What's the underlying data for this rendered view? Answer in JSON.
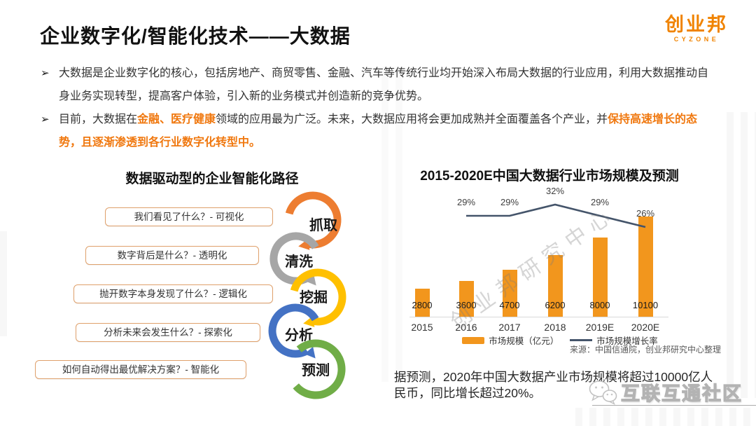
{
  "header": {
    "title": "企业数字化/智能化技术——大数据",
    "logo_text": "创业邦",
    "logo_sub": "CYZONE"
  },
  "bullets": [
    {
      "marker": "➢",
      "segments": [
        {
          "style": "default",
          "text": "大数据是企业数字化的核心，包括房地产、商贸零售、金融、汽车等传统行业均开始深入布局大数据的行业应用，利用大数据推动自身业务实现转型，提高客户体验，引入新的业务模式并创造新的竞争优势。"
        }
      ]
    },
    {
      "marker": "➢",
      "segments": [
        {
          "style": "default",
          "text": "目前，大数据在"
        },
        {
          "style": "accent",
          "text": "金融、医疗健康"
        },
        {
          "style": "default",
          "text": "领域的应用最为广泛。未来，大数据应用将会更加成熟并全面覆盖各个产业，并"
        },
        {
          "style": "accent",
          "text": "保持高速增长的态势，且逐渐渗透到各行业数字化转型中。"
        }
      ]
    }
  ],
  "process": {
    "title": "数据驱动型的企业智能化路径",
    "items": [
      {
        "question": "我们看见了什么？- 可视化",
        "step": "抓取",
        "color": "#ED7D31"
      },
      {
        "question": "数字背后是什么？- 透明化",
        "step": "清洗",
        "color": "#A6A6A6"
      },
      {
        "question": "抛开数字本身发现了什么？- 逻辑化",
        "step": "挖掘",
        "color": "#FFC000"
      },
      {
        "question": "分析未来会发生什么？- 探索化",
        "step": "分析",
        "color": "#4472C4"
      },
      {
        "question": "如何自动得出最优解决方案？- 智能化",
        "step": "预测",
        "color": "#70AD47"
      }
    ]
  },
  "chart_data": {
    "type": "bar",
    "title": "2015-2020E中国大数据行业市场规模及预测",
    "categories": [
      "2015",
      "2016",
      "2017",
      "2018",
      "2019E",
      "2020E"
    ],
    "series": [
      {
        "name": "市场规模（亿元）",
        "type": "bar",
        "color": "#F2961D",
        "values": [
          2800,
          3600,
          4700,
          6200,
          8000,
          10100
        ]
      },
      {
        "name": "市场规模增长率",
        "type": "line",
        "color": "#44546A",
        "values": [
          null,
          29,
          29,
          32,
          29,
          26
        ],
        "unit": "%"
      }
    ],
    "value_labels": true,
    "legend_position": "bottom",
    "grid": false,
    "source": "来源：中国信通院，创业邦研究中心整理"
  },
  "notes": {
    "prediction": "据预测，2020年中国大数据产业市场规模将超过10000亿人民币，同比增长超过20%。"
  },
  "watermarks": {
    "chart_diagonal": "创业邦研究中心",
    "community": "互联互通社区"
  },
  "colors": {
    "accent_orange": "#F0780F",
    "logo_orange": "#F08300",
    "bar_orange": "#F2961D",
    "growth_line": "#44546A"
  }
}
